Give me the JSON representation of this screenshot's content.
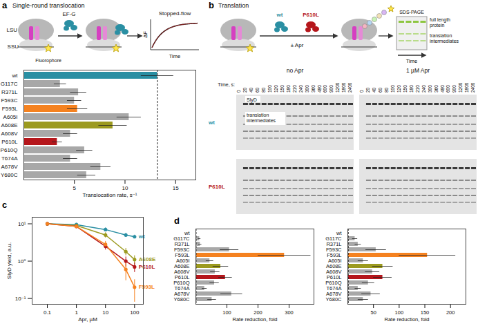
{
  "panel_labels": [
    "a",
    "b",
    "c",
    "d"
  ],
  "schematic_a": {
    "title": "Single-round translocation",
    "ef_g": "EF-G",
    "lsu": "LSU",
    "ssu": "SSU",
    "fluorophore": "Fluorophore",
    "method": "Stopped-flow",
    "inset_ylabel": "ΔF",
    "inset_xlabel": "Time"
  },
  "schematic_b": {
    "title": "Translation",
    "variants": [
      "wt",
      "P610L"
    ],
    "antibiotic": "± Apr",
    "method": "SDS-PAGE",
    "band_top": "full length protein",
    "band_low": "translation intermediates",
    "axis": "Time"
  },
  "gels": {
    "conditions": [
      "no Apr",
      "1 µM Apr"
    ],
    "rows": [
      "wt",
      "P610L"
    ],
    "colors": [
      "#2a8fa3",
      "#b5161b"
    ],
    "time_label": "Time, s:",
    "times": [
      0,
      20,
      40,
      60,
      80,
      100,
      120,
      150,
      180,
      210,
      240,
      300,
      360,
      480,
      600,
      900,
      1200,
      1800,
      2400
    ],
    "annotations": [
      "SlyD",
      "translation intermediates"
    ]
  },
  "chart_data": [
    {
      "type": "bar",
      "orientation": "horizontal",
      "categories": [
        "wt",
        "G117C",
        "R371L",
        "F593C",
        "F593L",
        "A605I",
        "A608E",
        "A608V",
        "P610L",
        "P610Q",
        "T674A",
        "A678V",
        "Y680C"
      ],
      "values": [
        13.2,
        3.6,
        5.4,
        5.0,
        5.3,
        10.4,
        8.8,
        4.6,
        3.3,
        6.0,
        4.6,
        7.6,
        6.2
      ],
      "errors": [
        1.6,
        0.6,
        0.8,
        0.7,
        1.0,
        1.2,
        1.4,
        0.7,
        0.5,
        0.8,
        0.7,
        1.0,
        0.9
      ],
      "colors": [
        "#2a8fa3",
        "#a8a8a8",
        "#a8a8a8",
        "#a8a8a8",
        "#f58220",
        "#a8a8a8",
        "#9c9a1f",
        "#a8a8a8",
        "#b5161b",
        "#a8a8a8",
        "#a8a8a8",
        "#a8a8a8",
        "#a8a8a8"
      ],
      "xlabel": "Translocation rate, s⁻¹",
      "xlim": [
        0,
        17
      ],
      "xticks": [
        5,
        10,
        15
      ]
    },
    {
      "type": "line",
      "log": true,
      "marker": "circle",
      "xlabel": "Apr, µM",
      "ylabel": "SlyD yield, a.u.",
      "x": [
        0.1,
        1,
        10,
        50,
        100
      ],
      "xlim": [
        0.03,
        200
      ],
      "xticks": [
        0.1,
        1,
        10,
        100
      ],
      "ylim": [
        0.07,
        15
      ],
      "yticks": [
        {
          "value": 0.1,
          "label": "10⁻¹"
        },
        {
          "value": 1,
          "label": "10⁰"
        },
        {
          "value": 10,
          "label": "10¹"
        }
      ],
      "series": [
        {
          "name": "wt",
          "color": "#2a8fa3",
          "values": [
            10,
            9.5,
            7,
            5,
            4.5
          ],
          "errors": [
            0,
            0.8,
            0.8,
            0.6,
            0.5
          ]
        },
        {
          "name": "A608E",
          "color": "#9c9a1f",
          "values": [
            10,
            9,
            5,
            1.8,
            1.1
          ],
          "errors": [
            0,
            0.8,
            0.8,
            0.4,
            0.3
          ]
        },
        {
          "name": "P610L",
          "color": "#b5161b",
          "values": [
            10,
            8.5,
            2.5,
            1.0,
            0.7
          ],
          "errors": [
            0,
            0.8,
            0.5,
            0.3,
            0.2
          ]
        },
        {
          "name": "F593L",
          "color": "#f58220",
          "values": [
            10,
            8.5,
            2.8,
            0.6,
            0.2
          ],
          "errors": [
            0,
            0.8,
            0.6,
            0.3,
            0.12
          ]
        }
      ]
    },
    {
      "type": "bar",
      "orientation": "horizontal",
      "categories": [
        "wt",
        "G117C",
        "R371L",
        "F593C",
        "F593L",
        "A605I",
        "A608E",
        "A608V",
        "P610L",
        "P610Q",
        "T674A",
        "A678V",
        "Y680C"
      ],
      "values": [
        1,
        12,
        14,
        108,
        285,
        45,
        80,
        62,
        95,
        60,
        28,
        115,
        52
      ],
      "errors": [
        0.3,
        4,
        5,
        30,
        85,
        12,
        25,
        15,
        22,
        15,
        8,
        35,
        14
      ],
      "colors": [
        "#2a8fa3",
        "#a8a8a8",
        "#a8a8a8",
        "#a8a8a8",
        "#f58220",
        "#a8a8a8",
        "#9c9a1f",
        "#a8a8a8",
        "#b5161b",
        "#a8a8a8",
        "#a8a8a8",
        "#a8a8a8",
        "#a8a8a8"
      ],
      "xlabel": "Rate reduction, fold",
      "xlim": [
        0,
        380
      ],
      "xticks": [
        100,
        200,
        300
      ]
    },
    {
      "type": "bar",
      "orientation": "horizontal",
      "categories": [
        "wt",
        "G117C",
        "R371L",
        "F593C",
        "F593L",
        "A605I",
        "A608E",
        "A608V",
        "P610L",
        "P610Q",
        "T674A",
        "A678V",
        "Y680C"
      ],
      "values": [
        1,
        14,
        20,
        55,
        155,
        30,
        68,
        48,
        68,
        40,
        20,
        45,
        30
      ],
      "errors": [
        0.3,
        5,
        6,
        20,
        55,
        10,
        20,
        14,
        18,
        12,
        6,
        18,
        10
      ],
      "colors": [
        "#2a8fa3",
        "#a8a8a8",
        "#a8a8a8",
        "#a8a8a8",
        "#f58220",
        "#a8a8a8",
        "#9c9a1f",
        "#a8a8a8",
        "#b5161b",
        "#a8a8a8",
        "#a8a8a8",
        "#a8a8a8",
        "#a8a8a8"
      ],
      "xlabel": "Rate reduction, fold",
      "xlim": [
        0,
        230
      ],
      "xticks": [
        50,
        100,
        150,
        200
      ]
    }
  ]
}
